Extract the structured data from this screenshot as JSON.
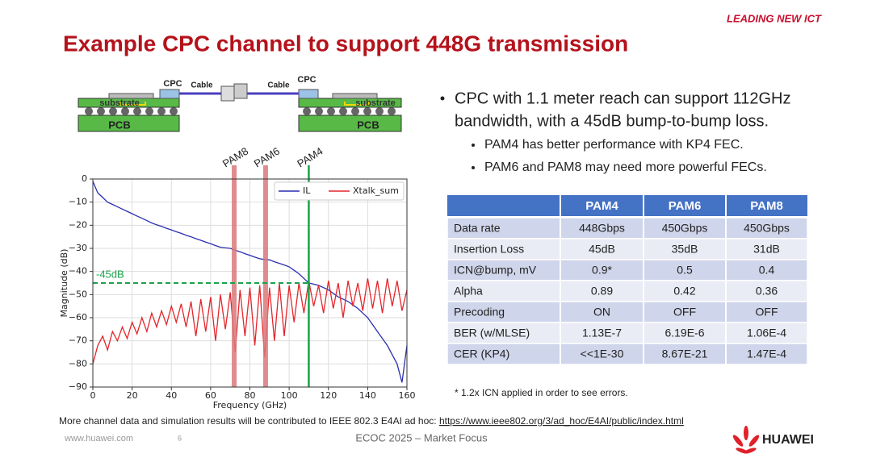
{
  "header": {
    "brand": "LEADING NEW ICT",
    "title": "Example CPC channel to support 448G transmission"
  },
  "diagram": {
    "labels": [
      "CPC",
      "Cable",
      "Cable",
      "CPC",
      "substrate",
      "substrate",
      "PCB",
      "PCB"
    ]
  },
  "chart_data": {
    "type": "line",
    "xlabel": "Frequency (GHz)",
    "ylabel": "Magnitude (dB)",
    "xlim": [
      0,
      160
    ],
    "xticks": [
      0,
      20,
      40,
      60,
      80,
      100,
      120,
      140,
      160
    ],
    "ylim": [
      -90,
      0
    ],
    "yticks": [
      0,
      {
        "value": -10,
        "label": "−10"
      },
      {
        "value": -20,
        "label": "−20"
      },
      {
        "value": -30,
        "label": "−30"
      },
      {
        "value": -40,
        "label": "−40"
      },
      {
        "value": -50,
        "label": "−50"
      },
      {
        "value": -60,
        "label": "−60"
      },
      {
        "value": -70,
        "label": "−70"
      },
      {
        "value": -80,
        "label": "−80"
      },
      {
        "value": -90,
        "label": "−90"
      }
    ],
    "grid": true,
    "legend": "upper right",
    "x": [
      0,
      2.5,
      5,
      7.5,
      10,
      12.5,
      15,
      17.5,
      20,
      22.5,
      25,
      27.5,
      30,
      32.5,
      35,
      37.5,
      40,
      42.5,
      45,
      47.5,
      50,
      52.5,
      55,
      57.5,
      60,
      62.5,
      65,
      67.5,
      70,
      72.5,
      75,
      77.5,
      80,
      82.5,
      85,
      87.5,
      90,
      92.5,
      95,
      97.5,
      100,
      102.5,
      105,
      107.5,
      110,
      112.5,
      115,
      117.5,
      120,
      122.5,
      125,
      127.5,
      130,
      132.5,
      135,
      137.5,
      140,
      142.5,
      145,
      147.5,
      150,
      152.5,
      155,
      157.5,
      160
    ],
    "series": [
      {
        "name": "IL",
        "color": "#2a2fb0",
        "values": [
          -1,
          -6,
          -8,
          -10,
          -11,
          -12,
          -13,
          -14,
          -15,
          -16,
          -17,
          -18,
          -19,
          -19.8,
          -20.5,
          -21.3,
          -22,
          -22.8,
          -23.5,
          -24.3,
          -25,
          -25.8,
          -26.5,
          -27.3,
          -28,
          -28.8,
          -29.5,
          -29.8,
          -30,
          -30.8,
          -31.5,
          -32.3,
          -33,
          -33.8,
          -34.5,
          -34.8,
          -35,
          -35.8,
          -36.5,
          -37.2,
          -38,
          -39.5,
          -41,
          -43,
          -45,
          -45.5,
          -46,
          -47,
          -48,
          -49.5,
          -51,
          -52,
          -53,
          -54.5,
          -56,
          -58,
          -60,
          -63,
          -66,
          -69,
          -72,
          -76,
          -80,
          -88,
          -72
        ]
      },
      {
        "name": "Xtalk_sum",
        "color": "#e3262b",
        "values": [
          -80,
          -72,
          -68,
          -74,
          -66,
          -70,
          -64,
          -69,
          -62,
          -67,
          -60,
          -66,
          -58,
          -64,
          -57,
          -63,
          -55,
          -62,
          -54,
          -64,
          -53,
          -68,
          -52,
          -66,
          -51,
          -70,
          -50,
          -65,
          -49,
          -75,
          -48,
          -68,
          -47,
          -72,
          -46,
          -77,
          -47,
          -70,
          -45,
          -68,
          -46,
          -62,
          -45,
          -58,
          -44,
          -55,
          -46,
          -58,
          -44,
          -56,
          -45,
          -60,
          -44,
          -55,
          -45,
          -57,
          -43,
          -56,
          -44,
          -58,
          -43,
          -55,
          -44,
          -57,
          -48
        ]
      }
    ],
    "vlines": [
      {
        "x": 72,
        "label": "PAM8",
        "color": "#d9787b"
      },
      {
        "x": 88,
        "label": "PAM6",
        "color": "#d9787b"
      },
      {
        "x": 110,
        "label": "PAM4",
        "color": "#1aa34a"
      }
    ],
    "hline": {
      "y": -45,
      "label": "-45dB",
      "color": "#1aa34a"
    }
  },
  "bullets": [
    {
      "lines": [
        "CPC with 1.1 meter reach can support 112GHz",
        "bandwidth, with a 45dB bump-to-bump loss."
      ],
      "sub": [
        "PAM4 has better performance with KP4 FEC.",
        "PAM6 and PAM8 may need more powerful FECs."
      ]
    }
  ],
  "table": {
    "header": [
      "PAM4",
      "PAM6",
      "PAM8"
    ],
    "rows": [
      [
        "Data rate",
        "448Gbps",
        "450Gbps",
        "450Gbps"
      ],
      [
        "Insertion Loss",
        "45dB",
        "35dB",
        "31dB"
      ],
      [
        "ICN@bump, mV",
        "0.9*",
        "0.5",
        "0.4"
      ],
      [
        "Alpha",
        "0.89",
        "0.42",
        "0.36"
      ],
      [
        "Precoding",
        "ON",
        "OFF",
        "OFF"
      ],
      [
        "BER (w/MLSE)",
        "1.13E-7",
        "6.19E-6",
        "1.06E-4"
      ],
      [
        "CER (KP4)",
        "<<1E-30",
        "8.67E-21",
        "1.47E-4"
      ]
    ]
  },
  "footnote": "* 1.2x ICN applied in order to see errors.",
  "note": {
    "text": "More channel data and simulation results will be contributed to IEEE 802.3 E4AI ad hoc: ",
    "link": "https://www.ieee802.org/3/ad_hoc/E4AI/public/index.html"
  },
  "footer": {
    "site": "www.huawei.com",
    "page": "6",
    "event": "ECOC 2025 – Market Focus",
    "logo": "HUAWEI"
  }
}
